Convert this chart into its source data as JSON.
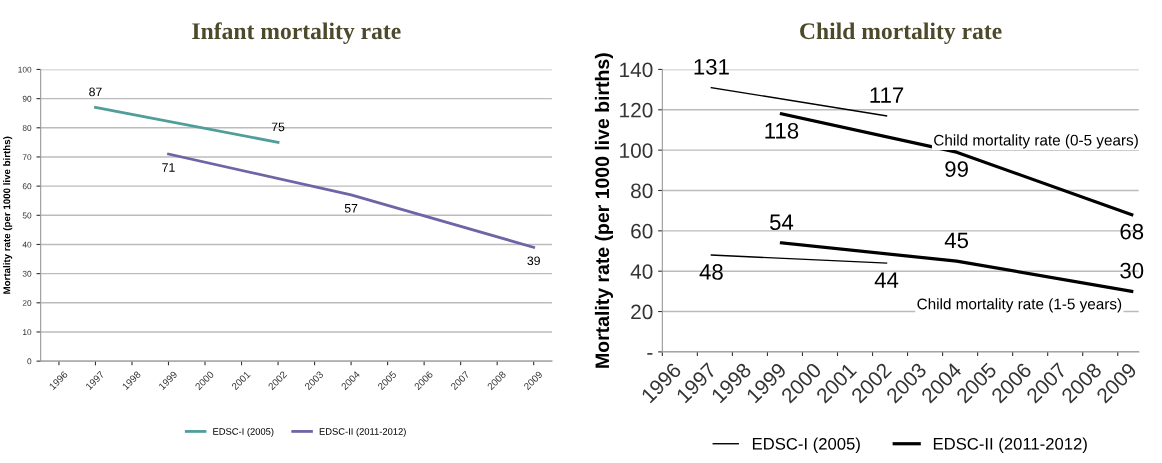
{
  "chart_data": [
    {
      "type": "line",
      "title": "Infant mortality rate",
      "ylabel": "Mortality rate (per 1000 live births)",
      "categories": [
        "1996",
        "1997",
        "1998",
        "1999",
        "2000",
        "2001",
        "2002",
        "2003",
        "2004",
        "2005",
        "2006",
        "2007",
        "2008",
        "2009"
      ],
      "series": [
        {
          "name": "EDSC-I (2005)",
          "color": "#4f9e9a",
          "values": [
            null,
            87,
            null,
            null,
            null,
            null,
            75,
            null,
            null,
            null,
            null,
            null,
            null,
            null
          ]
        },
        {
          "name": "EDSC-II (2011-2012)",
          "color": "#6f64a6",
          "values": [
            null,
            null,
            null,
            71,
            null,
            null,
            null,
            null,
            57,
            null,
            null,
            null,
            null,
            39
          ]
        }
      ],
      "ylim": [
        0,
        100
      ],
      "yticks": [
        0,
        10,
        20,
        30,
        40,
        50,
        60,
        70,
        80,
        90,
        100
      ],
      "grid": "y",
      "legend": "bottom",
      "data_labels": true
    },
    {
      "type": "line",
      "title": "Child mortality rate",
      "ylabel": "Mortality rate (per 1000 live births)",
      "categories": [
        "1996",
        "1997",
        "1998",
        "1999",
        "2000",
        "2001",
        "2002",
        "2003",
        "2004",
        "2005",
        "2006",
        "2007",
        "2008",
        "2009"
      ],
      "series": [
        {
          "name": "EDSC-I (2005)",
          "color": "#000000",
          "values": [
            null,
            131,
            null,
            null,
            null,
            null,
            117,
            null,
            null,
            null,
            null,
            null,
            null,
            null
          ]
        },
        {
          "name": "EDSC-II (2011-2012)",
          "color": "#000000",
          "values": [
            null,
            null,
            null,
            118,
            null,
            null,
            null,
            null,
            99,
            null,
            null,
            null,
            null,
            68
          ]
        },
        {
          "color": "#000000",
          "values": [
            null,
            48,
            null,
            null,
            null,
            null,
            44,
            null,
            null,
            null,
            null,
            null,
            null,
            null
          ]
        },
        {
          "color": "#000000",
          "values": [
            null,
            null,
            null,
            54,
            null,
            null,
            null,
            null,
            45,
            null,
            null,
            null,
            null,
            30
          ]
        }
      ],
      "annotations": [
        "Child mortality rate (0-5 years)",
        "Child mortality rate (1-5 years)"
      ],
      "ylim": [
        0,
        140
      ],
      "yticks": [
        {
          "value": 0,
          "label": "-"
        },
        20,
        40,
        60,
        80,
        100,
        120,
        140
      ],
      "grid": "y",
      "legend": "bottom",
      "data_labels": true
    }
  ]
}
